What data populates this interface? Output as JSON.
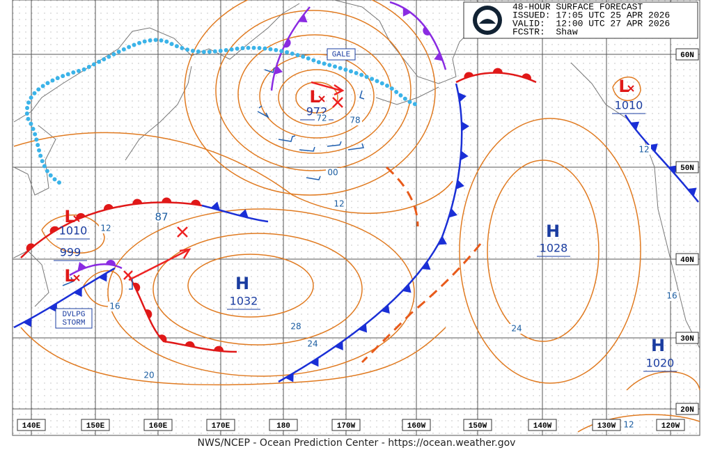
{
  "header": {
    "lines": [
      "48-HOUR SURFACE FORECAST",
      "ISSUED: 17:05 UTC 25 APR 2026",
      "VALID:  12:00 UTC 27 APR 2026",
      "FCSTR:  Shaw"
    ]
  },
  "lat_labels": [
    "60N",
    "50N",
    "40N",
    "30N",
    "20N"
  ],
  "lon_labels": [
    "140E",
    "150E",
    "160E",
    "170E",
    "180",
    "170W",
    "160W",
    "150W",
    "140W",
    "130W",
    "120W"
  ],
  "systems": [
    {
      "letter": "L",
      "pressure": "972"
    },
    {
      "letter": "L",
      "pressure": "1010"
    },
    {
      "letter": "L",
      "pressure": "1010"
    },
    {
      "pressure": "999"
    },
    {
      "letter": "L"
    },
    {
      "letter": "H",
      "pressure": "1032"
    },
    {
      "letter": "H",
      "pressure": "1028"
    },
    {
      "letter": "H",
      "pressure": "1020"
    }
  ],
  "warnings": [
    "GALE",
    [
      "DVLPG",
      "STORM"
    ]
  ],
  "isobar_labels": [
    "72",
    "78",
    "00",
    "12",
    "16",
    "20",
    "24",
    "28",
    "24",
    "12",
    "16",
    "12",
    "87",
    "12"
  ],
  "footer": "NWS/NCEP - Ocean Prediction Center - https://ocean.weather.gov"
}
